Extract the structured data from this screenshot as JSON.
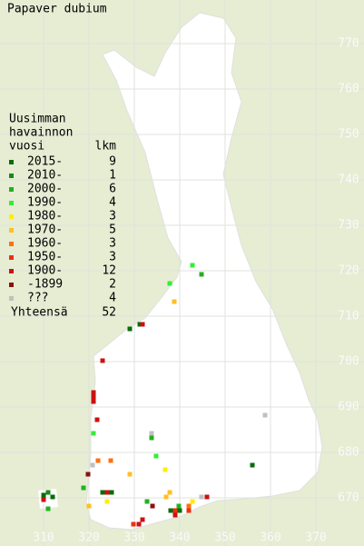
{
  "chart_data": {
    "type": "map",
    "title": "Papaver dubium",
    "legend_title": [
      "Uusimman",
      "havainnon",
      "vuosi"
    ],
    "count_title": "lkm",
    "total_label": "Yhteensä",
    "total": 52,
    "xlim": [
      300.4,
      380.6
    ],
    "ylim": [
      659.4,
      779.6
    ],
    "xticks": [
      310,
      320,
      330,
      340,
      350,
      360,
      370
    ],
    "yticks": [
      670,
      680,
      690,
      700,
      710,
      720,
      730,
      740,
      750,
      760,
      770
    ],
    "series": [
      {
        "name": "2015-",
        "color": "#0a6b0a",
        "count": 9,
        "x": [
          329.0,
          331.2,
          356.0,
          323.0,
          325.0,
          310.0,
          312.0,
          338.0,
          340.0
        ],
        "y": [
          707.2,
          708.2,
          677.2,
          671.2,
          671.2,
          670.6,
          670.2,
          667.2,
          667.2
        ]
      },
      {
        "name": "2010-",
        "color": "#178a17",
        "count": 1,
        "x": [
          311.0
        ],
        "y": [
          671.2
        ]
      },
      {
        "name": "2000-",
        "color": "#22b022",
        "count": 6,
        "x": [
          344.8,
          333.8,
          318.8,
          332.8,
          339.8,
          311.0
        ],
        "y": [
          719.2,
          683.2,
          672.2,
          669.2,
          668.2,
          667.6
        ]
      },
      {
        "name": "1990-",
        "color": "#33ee33",
        "count": 4,
        "x": [
          342.8,
          337.8,
          321.0,
          334.8
        ],
        "y": [
          721.2,
          717.2,
          684.2,
          679.2
        ]
      },
      {
        "name": "1980-",
        "color": "#ffee00",
        "count": 3,
        "x": [
          336.8,
          324.0,
          342.8
        ],
        "y": [
          676.2,
          669.2,
          669.2
        ]
      },
      {
        "name": "1970-",
        "color": "#ffc020",
        "count": 5,
        "x": [
          338.8,
          329.0,
          337.0,
          337.8,
          320.0
        ],
        "y": [
          713.2,
          675.2,
          670.2,
          671.2,
          668.2
        ]
      },
      {
        "name": "1960-",
        "color": "#ff7010",
        "count": 3,
        "x": [
          322.0,
          324.8,
          342.0
        ],
        "y": [
          678.2,
          678.2,
          668.2
        ]
      },
      {
        "name": "1950-",
        "color": "#ee3010",
        "count": 3,
        "x": [
          339.0,
          329.8,
          342.0
        ],
        "y": [
          667.2,
          664.2,
          667.2
        ]
      },
      {
        "name": "1900-",
        "color": "#cc1010",
        "count": 12,
        "x": [
          331.8,
          323.0,
          321.0,
          321.0,
          321.0,
          321.8,
          324.0,
          346.0,
          310.0,
          331.0,
          331.8,
          339.0
        ],
        "y": [
          708.2,
          700.2,
          693.2,
          692.2,
          691.2,
          687.2,
          671.2,
          670.2,
          669.6,
          664.2,
          665.2,
          666.2
        ]
      },
      {
        "name": "-1899",
        "color": "#8b1010",
        "count": 2,
        "x": [
          319.8,
          334.0
        ],
        "y": [
          675.2,
          668.2
        ]
      },
      {
        "name": "???",
        "color": "#c0c0c0",
        "count": 4,
        "x": [
          358.8,
          333.8,
          320.8,
          344.8
        ],
        "y": [
          688.2,
          684.2,
          677.2,
          670.2
        ]
      }
    ]
  }
}
